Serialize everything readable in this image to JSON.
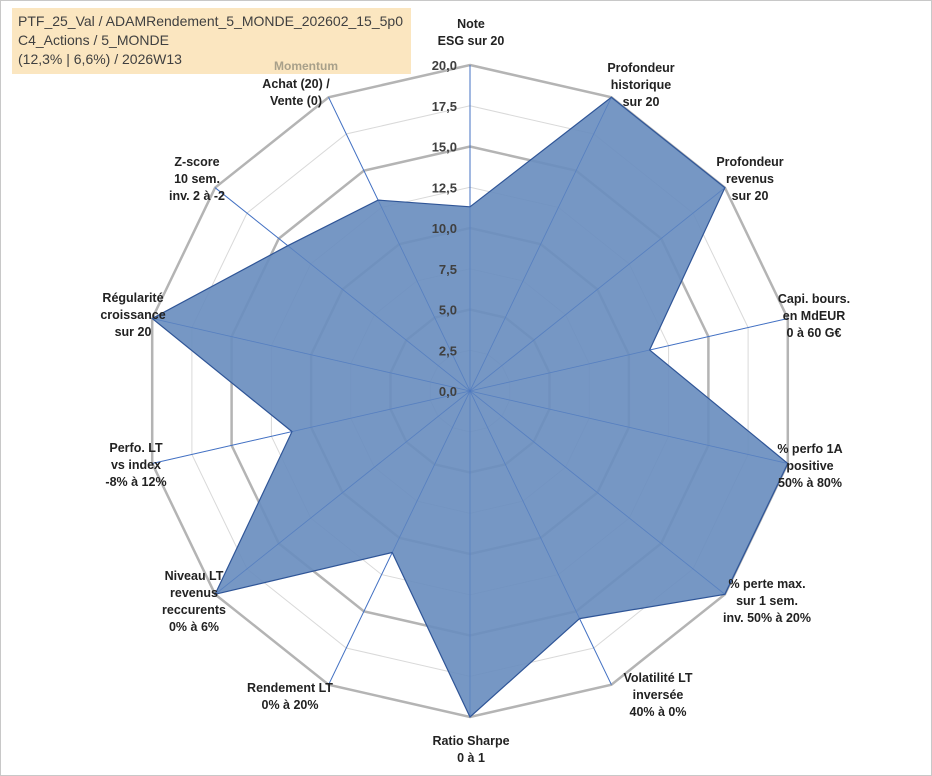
{
  "header": {
    "line1": "PTF_25_Val / ADAMRendement_5_MONDE_202602_15_5p0",
    "line2": "C4_Actions / 5_MONDE",
    "line3": "(12,3% | 6,6%) / 2026W13"
  },
  "colors": {
    "fill": "#6a8ebf",
    "stroke": "#2f5597",
    "ring": "#b4b4b4",
    "spoke": "#4472c4",
    "header_bg": "#fbe6c0"
  },
  "chart_data": {
    "type": "radar",
    "range": [
      0,
      20
    ],
    "tick_step": 2.5,
    "major_ring_every": 5,
    "tick_labels": [
      "0,0",
      "2,5",
      "5,0",
      "7,5",
      "10,0",
      "12,5",
      "15,0",
      "17,5",
      "20,0"
    ],
    "categories": [
      {
        "label": [
          "Note",
          "ESG sur 20"
        ],
        "value": 11.3
      },
      {
        "label": [
          "Profondeur",
          "historique",
          "sur 20"
        ],
        "value": 20
      },
      {
        "label": [
          "Profondeur",
          "revenus",
          "sur 20"
        ],
        "value": 20
      },
      {
        "label": [
          "Capi. bours.",
          "en MdEUR",
          "0 à 60 G€"
        ],
        "value": 11.3
      },
      {
        "label": [
          "% perfo 1A",
          "positive",
          "50% à 80%"
        ],
        "value": 20
      },
      {
        "label": [
          "% perte max.",
          "sur 1 sem.",
          "inv. 50% à 20%"
        ],
        "value": 20
      },
      {
        "label": [
          "Volatilité LT",
          "inversée",
          "40% à 0%"
        ],
        "value": 15.5
      },
      {
        "label": [
          "Ratio Sharpe",
          "0 à 1"
        ],
        "value": 20
      },
      {
        "label": [
          "Rendement LT",
          "0% à 20%"
        ],
        "value": 11
      },
      {
        "label": [
          "Niveau LT",
          "revenus",
          "reccurents",
          "0% à 6%"
        ],
        "value": 20
      },
      {
        "label": [
          "Perfo. LT",
          "vs index",
          "-8% à 12%"
        ],
        "value": 11.2
      },
      {
        "label": [
          "Régularité",
          "croissance",
          "sur 20"
        ],
        "value": 20
      },
      {
        "label": [
          "Z-score",
          "10 sem.",
          "inv. 2 à -2"
        ],
        "value": 14.3
      },
      {
        "label": [
          "Momentum",
          "Achat (20) /",
          "Vente (0)"
        ],
        "value": 13
      }
    ]
  }
}
